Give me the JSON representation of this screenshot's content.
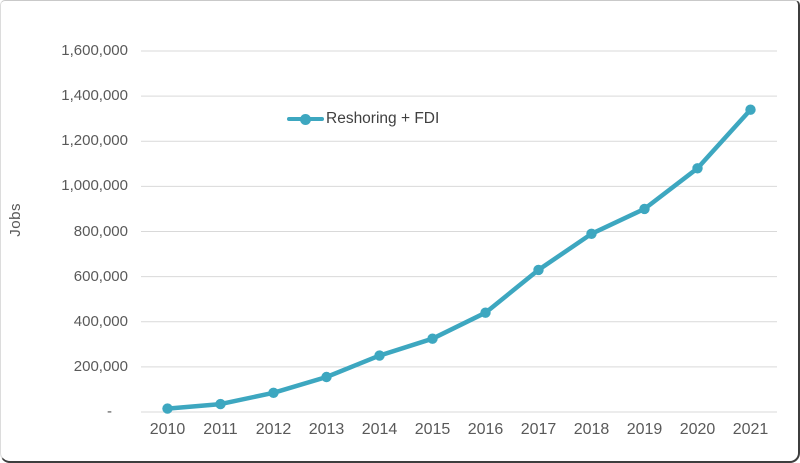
{
  "chart_data": {
    "type": "line",
    "title": "",
    "ylabel": "Jobs",
    "xlabel": "",
    "categories": [
      "2010",
      "2011",
      "2012",
      "2013",
      "2014",
      "2015",
      "2016",
      "2017",
      "2018",
      "2019",
      "2020",
      "2021"
    ],
    "series": [
      {
        "name": "Reshoring + FDI",
        "values": [
          15000,
          35000,
          85000,
          155000,
          250000,
          325000,
          440000,
          630000,
          790000,
          900000,
          1080000,
          1340000
        ],
        "color": "#3DA7C0",
        "marker": "circle"
      }
    ],
    "ylim": [
      0,
      1600000
    ],
    "ytick_interval": 200000,
    "ytick_labels": [
      "-",
      "200,000",
      "400,000",
      "600,000",
      "800,000",
      "1,000,000",
      "1,200,000",
      "1,400,000",
      "1,600,000"
    ],
    "grid": true,
    "legend_position": "inside-upper-left-of-center",
    "colors": {
      "line": "#3DA7C0",
      "gridline": "#D9D9D9",
      "tick_text": "#595959",
      "legend_text": "#404040",
      "axis_title_text": "#595959",
      "background": "#FFFFFF",
      "frame_border": "#3E3E3E"
    }
  }
}
